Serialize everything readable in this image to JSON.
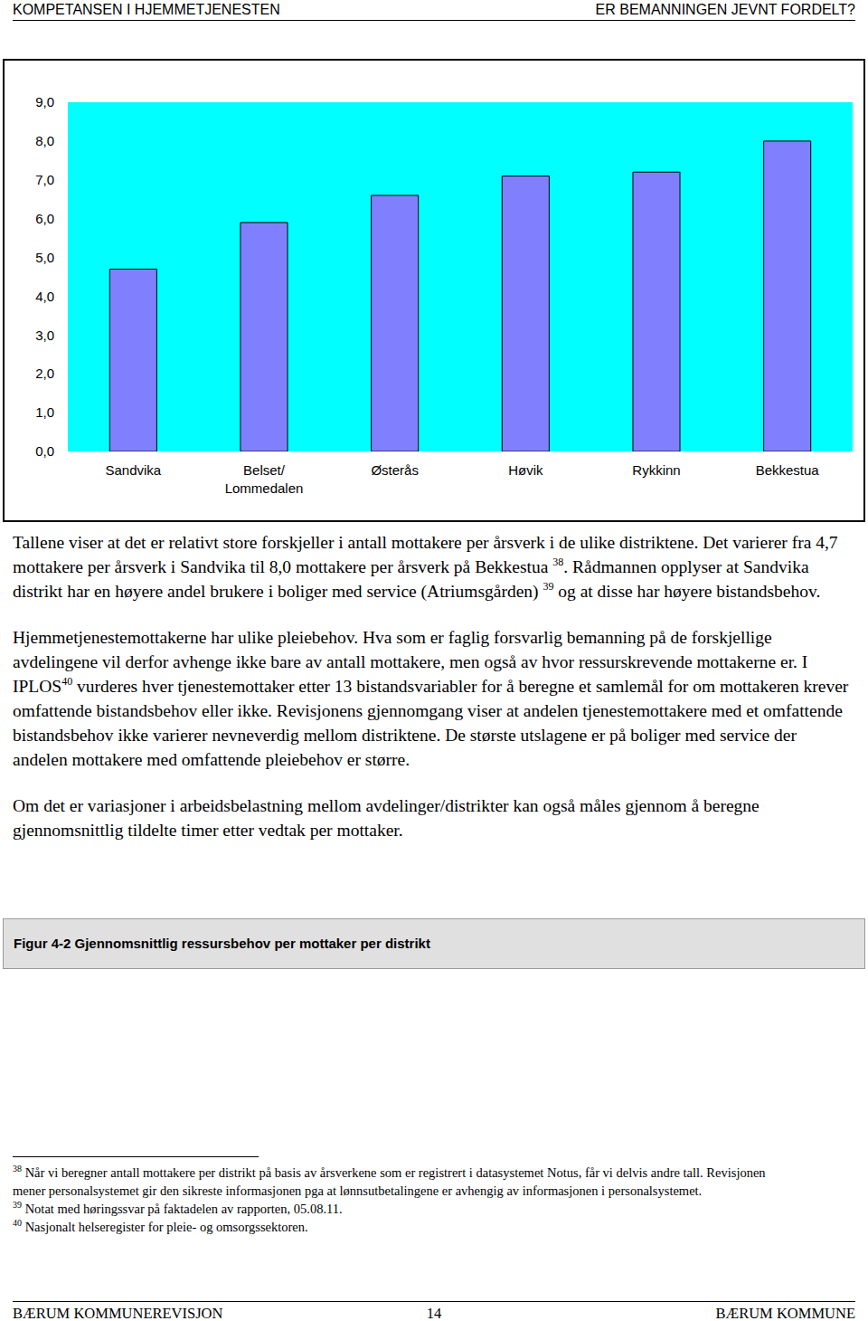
{
  "header": {
    "left": "KOMPETANSEN I HJEMMETJENESTEN",
    "right": "ER BEMANNINGEN JEVNT FORDELT?"
  },
  "chart_data": {
    "type": "bar",
    "categories": [
      "Sandvika",
      "Belset/ Lommedalen",
      "Østerås",
      "Høvik",
      "Rykkinn",
      "Bekkestua"
    ],
    "values": [
      4.7,
      5.9,
      6.6,
      7.1,
      7.2,
      8.0
    ],
    "color": "#8080ff",
    "ylim": [
      0,
      9
    ],
    "yticks": [
      {
        "value": 0,
        "label": "0,0"
      },
      {
        "value": 1,
        "label": "1,0"
      },
      {
        "value": 2,
        "label": "2,0"
      },
      {
        "value": 3,
        "label": "3,0"
      },
      {
        "value": 4,
        "label": "4,0"
      },
      {
        "value": 5,
        "label": "5,0"
      },
      {
        "value": 6,
        "label": "6,0"
      },
      {
        "value": 7,
        "label": "7,0"
      },
      {
        "value": 8,
        "label": "8,0"
      },
      {
        "value": 9,
        "label": "9,0"
      }
    ],
    "grid": false
  },
  "paragraphs": [
    [
      {
        "text": "Tallene viser at det er relativt store forskjeller i antall mottakere per årsverk i de ulike distriktene. Det varierer fra 4,7 mottakere per årsverk i Sandvika til 8,0 mottakere per årsverk på Bekkestua "
      },
      {
        "sup": "38"
      },
      {
        "text": ". Rådmannen opplyser at Sandvika distrikt har en høyere andel brukere i boliger med service (Atriumsgården) "
      },
      {
        "sup": "39"
      },
      {
        "text": " og at disse har høyere bistandsbehov."
      }
    ],
    [
      {
        "text": "Hjemmetjenestemottakerne har ulike pleiebehov. Hva som er faglig forsvarlig bemanning på de forskjellige avdelingene vil derfor avhenge ikke bare av antall mottakere, men også av hvor ressurskrevende mottakerne er. I IPLOS"
      },
      {
        "sup": "40"
      },
      {
        "text": " vurderes hver tjenestemottaker etter 13 bistandsvariabler for å beregne et samlemål for om mottakeren krever omfattende bistandsbehov eller ikke. Revisjonens gjennomgang viser at andelen tjenestemottakere med et omfattende bistandsbehov ikke varierer nevneverdig mellom distriktene. De største utslagene er på boliger med service der andelen mottakere med omfattende pleiebehov er større."
      }
    ],
    [
      {
        "text": "Om det er variasjoner i arbeidsbelastning mellom avdelinger/distrikter kan også måles gjennom å beregne gjennomsnittlig tildelte timer etter vedtak per mottaker."
      }
    ]
  ],
  "figure_caption": "Figur 4-2 Gjennomsnittlig ressursbehov per mottaker per distrikt",
  "footnotes": [
    {
      "number": "38",
      "text": "Når vi beregner antall mottakere per distrikt på basis av årsverkene som er registrert i datasystemet Notus, får vi delvis andre tall. Revisjonen mener personalsystemet gir den sikreste informasjonen pga at lønnsutbetalingene er avhengig av informasjonen i personalsystemet."
    },
    {
      "number": "39",
      "text": "Notat med høringssvar på faktadelen av rapporten, 05.08.11."
    },
    {
      "number": "40",
      "text": "Nasjonalt helseregister for pleie- og omsorgssektoren."
    }
  ],
  "footer": {
    "left": "BÆRUM KOMMUNEREVISJON",
    "page": "14",
    "right": "BÆRUM KOMMUNE"
  }
}
